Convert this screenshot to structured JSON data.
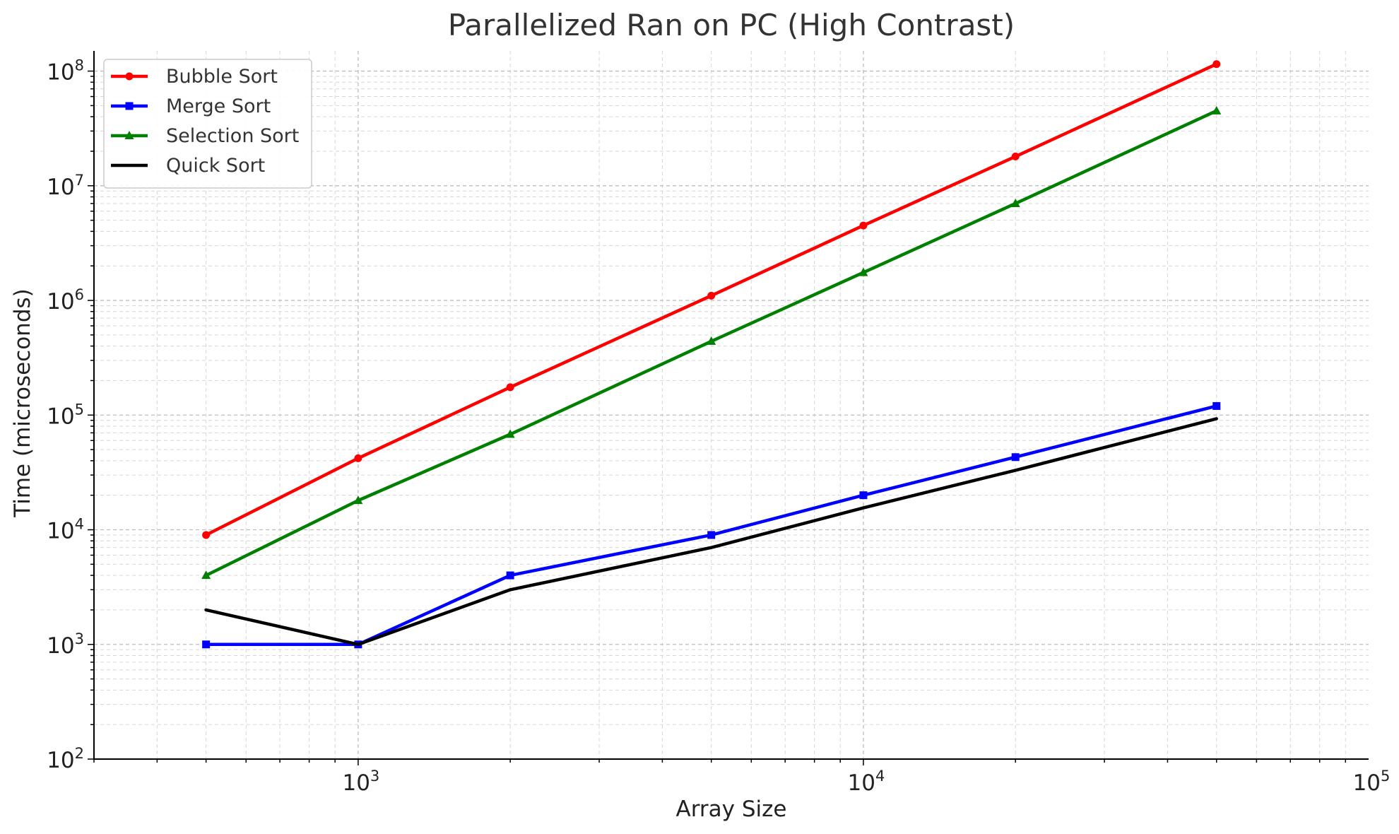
{
  "chart_data": {
    "type": "line",
    "title": "Parallelized Ran on PC (High Contrast)",
    "xlabel": "Array Size",
    "ylabel": "Time (microseconds)",
    "x_scale": "log",
    "y_scale": "log",
    "xlim": [
      300,
      100000
    ],
    "ylim": [
      100,
      150000000
    ],
    "x_ticks": [
      {
        "base": "10",
        "exp": "3",
        "value": 1000
      },
      {
        "base": "10",
        "exp": "4",
        "value": 10000
      },
      {
        "base": "10",
        "exp": "5",
        "value": 100000
      }
    ],
    "y_ticks": [
      {
        "base": "10",
        "exp": "2",
        "value": 100
      },
      {
        "base": "10",
        "exp": "3",
        "value": 1000
      },
      {
        "base": "10",
        "exp": "4",
        "value": 10000
      },
      {
        "base": "10",
        "exp": "5",
        "value": 100000
      },
      {
        "base": "10",
        "exp": "6",
        "value": 1000000
      },
      {
        "base": "10",
        "exp": "7",
        "value": 10000000
      },
      {
        "base": "10",
        "exp": "8",
        "value": 100000000
      }
    ],
    "grid": true,
    "legend_position": "top-left",
    "x": [
      500,
      1000,
      2000,
      5000,
      10000,
      20000,
      50000
    ],
    "series": [
      {
        "name": "Bubble Sort",
        "color": "#ff0000",
        "marker": "circle",
        "values": [
          9000,
          42000,
          175000,
          1100000,
          4500000,
          18000000,
          115000000
        ]
      },
      {
        "name": "Merge Sort",
        "color": "#0000ff",
        "marker": "square",
        "values": [
          1000,
          1000,
          4000,
          9000,
          20000,
          43000,
          120000
        ]
      },
      {
        "name": "Selection Sort",
        "color": "#008000",
        "marker": "triangle",
        "values": [
          4000,
          18000,
          68000,
          440000,
          1750000,
          7000000,
          45000000
        ]
      },
      {
        "name": "Quick Sort",
        "color": "#000000",
        "marker": "none",
        "values": [
          2000,
          1000,
          3000,
          7000,
          15500,
          33000,
          93000
        ]
      }
    ]
  }
}
